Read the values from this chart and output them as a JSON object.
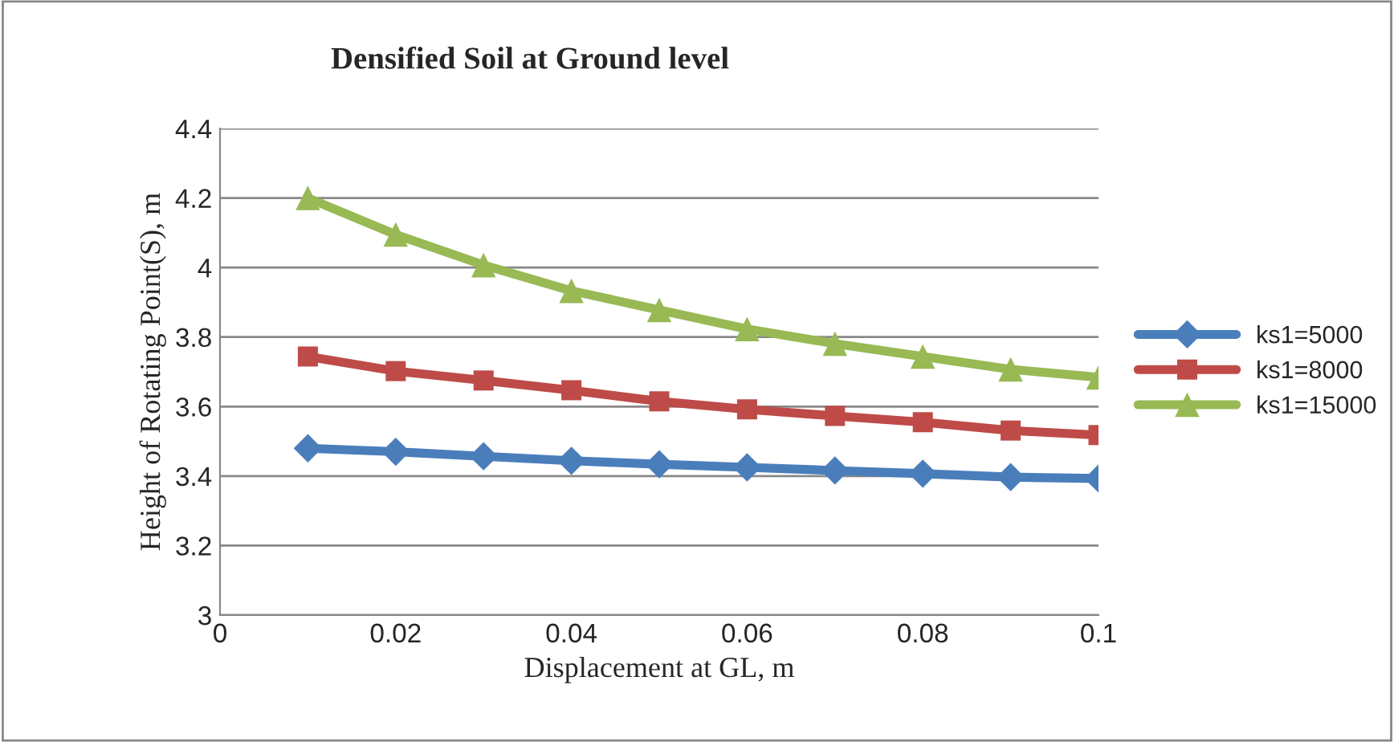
{
  "chart_data": {
    "type": "line",
    "title": "Densified Soil at Ground level",
    "xlabel": "Displacement at GL, m",
    "ylabel": "Height of Rotating Point(S), m",
    "x": [
      0.01,
      0.02,
      0.03,
      0.04,
      0.05,
      0.06,
      0.07,
      0.08,
      0.09,
      0.1
    ],
    "series": [
      {
        "name": "ks1=5000",
        "color": "#4a7ebb",
        "marker": "diamond",
        "values": [
          3.48,
          3.47,
          3.457,
          3.444,
          3.434,
          3.425,
          3.416,
          3.407,
          3.397,
          3.393
        ]
      },
      {
        "name": "ks1=8000",
        "color": "#be4b48",
        "marker": "square",
        "values": [
          3.744,
          3.702,
          3.675,
          3.647,
          3.615,
          3.592,
          3.573,
          3.555,
          3.531,
          3.518
        ]
      },
      {
        "name": "ks1=15000",
        "color": "#98b954",
        "marker": "triangle",
        "values": [
          4.2,
          4.095,
          4.007,
          3.933,
          3.878,
          3.823,
          3.781,
          3.744,
          3.707,
          3.684
        ]
      }
    ],
    "xlim": [
      0,
      0.1
    ],
    "xticks": [
      0,
      0.02,
      0.04,
      0.06,
      0.08,
      0.1
    ],
    "ylim": [
      3,
      4.4
    ],
    "yticks": [
      3,
      3.2,
      3.4,
      3.6,
      3.8,
      4,
      4.2,
      4.4
    ],
    "grid": "y",
    "legend": "right",
    "line_style": "solid"
  }
}
